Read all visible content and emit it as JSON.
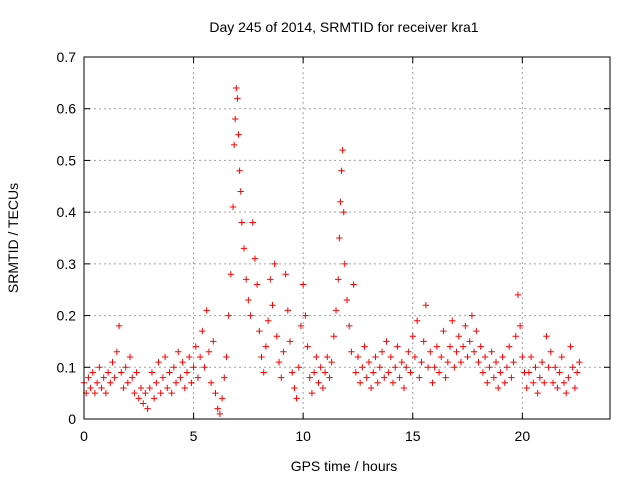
{
  "chart_data": {
    "type": "scatter",
    "title": "Day 245 of 2014, SRMTID for receiver kra1",
    "xlabel": "GPS time / hours",
    "ylabel": "SRMTID / TECUs",
    "xlim": [
      0,
      24
    ],
    "ylim": [
      0,
      0.7
    ],
    "xticks": [
      0,
      5,
      10,
      15,
      20
    ],
    "yticks": [
      0,
      0.1,
      0.2,
      0.3,
      0.4,
      0.5,
      0.6,
      0.7
    ],
    "xtick_labels": [
      "0",
      "5",
      "10",
      "15",
      "20"
    ],
    "ytick_labels": [
      "0",
      "0.1",
      "0.2",
      "0.3",
      "0.4",
      "0.5",
      "0.6",
      "0.7"
    ],
    "grid": true,
    "marker": "+",
    "color": "#ff0000",
    "series": [
      {
        "name": "kra1",
        "points": [
          [
            0.0,
            0.07
          ],
          [
            0.1,
            0.05
          ],
          [
            0.2,
            0.08
          ],
          [
            0.3,
            0.06
          ],
          [
            0.4,
            0.09
          ],
          [
            0.5,
            0.05
          ],
          [
            0.6,
            0.07
          ],
          [
            0.7,
            0.1
          ],
          [
            0.8,
            0.06
          ],
          [
            0.9,
            0.08
          ],
          [
            1.0,
            0.05
          ],
          [
            1.1,
            0.09
          ],
          [
            1.2,
            0.07
          ],
          [
            1.3,
            0.11
          ],
          [
            1.4,
            0.08
          ],
          [
            1.5,
            0.13
          ],
          [
            1.6,
            0.18
          ],
          [
            1.7,
            0.09
          ],
          [
            1.8,
            0.06
          ],
          [
            1.9,
            0.1
          ],
          [
            2.0,
            0.07
          ],
          [
            2.1,
            0.12
          ],
          [
            2.2,
            0.08
          ],
          [
            2.3,
            0.05
          ],
          [
            2.4,
            0.09
          ],
          [
            2.5,
            0.04
          ],
          [
            2.6,
            0.06
          ],
          [
            2.7,
            0.03
          ],
          [
            2.8,
            0.05
          ],
          [
            2.9,
            0.02
          ],
          [
            3.0,
            0.06
          ],
          [
            3.1,
            0.09
          ],
          [
            3.2,
            0.04
          ],
          [
            3.3,
            0.07
          ],
          [
            3.4,
            0.11
          ],
          [
            3.5,
            0.05
          ],
          [
            3.6,
            0.08
          ],
          [
            3.7,
            0.12
          ],
          [
            3.8,
            0.06
          ],
          [
            3.9,
            0.09
          ],
          [
            4.0,
            0.05
          ],
          [
            4.1,
            0.1
          ],
          [
            4.2,
            0.07
          ],
          [
            4.3,
            0.13
          ],
          [
            4.4,
            0.08
          ],
          [
            4.5,
            0.11
          ],
          [
            4.6,
            0.06
          ],
          [
            4.7,
            0.09
          ],
          [
            4.8,
            0.12
          ],
          [
            4.9,
            0.07
          ],
          [
            5.0,
            0.1
          ],
          [
            5.1,
            0.14
          ],
          [
            5.2,
            0.08
          ],
          [
            5.3,
            0.12
          ],
          [
            5.4,
            0.17
          ],
          [
            5.5,
            0.1
          ],
          [
            5.6,
            0.21
          ],
          [
            5.7,
            0.13
          ],
          [
            5.8,
            0.07
          ],
          [
            5.9,
            0.15
          ],
          [
            6.0,
            0.05
          ],
          [
            6.1,
            0.02
          ],
          [
            6.2,
            0.01
          ],
          [
            6.3,
            0.04
          ],
          [
            6.4,
            0.08
          ],
          [
            6.5,
            0.12
          ],
          [
            6.6,
            0.2
          ],
          [
            6.7,
            0.28
          ],
          [
            6.8,
            0.41
          ],
          [
            6.85,
            0.53
          ],
          [
            6.9,
            0.58
          ],
          [
            6.95,
            0.64
          ],
          [
            7.0,
            0.62
          ],
          [
            7.05,
            0.55
          ],
          [
            7.1,
            0.48
          ],
          [
            7.15,
            0.44
          ],
          [
            7.2,
            0.38
          ],
          [
            7.3,
            0.33
          ],
          [
            7.4,
            0.27
          ],
          [
            7.5,
            0.23
          ],
          [
            7.6,
            0.2
          ],
          [
            7.7,
            0.38
          ],
          [
            7.8,
            0.31
          ],
          [
            7.9,
            0.26
          ],
          [
            8.0,
            0.17
          ],
          [
            8.1,
            0.12
          ],
          [
            8.2,
            0.09
          ],
          [
            8.3,
            0.14
          ],
          [
            8.4,
            0.19
          ],
          [
            8.5,
            0.27
          ],
          [
            8.6,
            0.22
          ],
          [
            8.7,
            0.3
          ],
          [
            8.8,
            0.16
          ],
          [
            8.9,
            0.11
          ],
          [
            9.0,
            0.08
          ],
          [
            9.1,
            0.13
          ],
          [
            9.2,
            0.28
          ],
          [
            9.3,
            0.21
          ],
          [
            9.4,
            0.15
          ],
          [
            9.5,
            0.09
          ],
          [
            9.6,
            0.06
          ],
          [
            9.7,
            0.04
          ],
          [
            9.8,
            0.1
          ],
          [
            9.9,
            0.18
          ],
          [
            10.0,
            0.26
          ],
          [
            10.1,
            0.2
          ],
          [
            10.2,
            0.14
          ],
          [
            10.3,
            0.08
          ],
          [
            10.4,
            0.05
          ],
          [
            10.5,
            0.09
          ],
          [
            10.6,
            0.12
          ],
          [
            10.7,
            0.07
          ],
          [
            10.8,
            0.1
          ],
          [
            10.9,
            0.06
          ],
          [
            11.0,
            0.09
          ],
          [
            11.1,
            0.12
          ],
          [
            11.2,
            0.08
          ],
          [
            11.3,
            0.11
          ],
          [
            11.4,
            0.16
          ],
          [
            11.5,
            0.21
          ],
          [
            11.6,
            0.27
          ],
          [
            11.65,
            0.35
          ],
          [
            11.7,
            0.42
          ],
          [
            11.75,
            0.48
          ],
          [
            11.8,
            0.52
          ],
          [
            11.85,
            0.4
          ],
          [
            11.9,
            0.3
          ],
          [
            12.0,
            0.23
          ],
          [
            12.1,
            0.18
          ],
          [
            12.2,
            0.13
          ],
          [
            12.3,
            0.26
          ],
          [
            12.4,
            0.09
          ],
          [
            12.5,
            0.12
          ],
          [
            12.6,
            0.07
          ],
          [
            12.7,
            0.1
          ],
          [
            12.8,
            0.14
          ],
          [
            12.9,
            0.08
          ],
          [
            13.0,
            0.11
          ],
          [
            13.1,
            0.06
          ],
          [
            13.2,
            0.09
          ],
          [
            13.3,
            0.12
          ],
          [
            13.4,
            0.07
          ],
          [
            13.5,
            0.1
          ],
          [
            13.6,
            0.13
          ],
          [
            13.7,
            0.08
          ],
          [
            13.8,
            0.15
          ],
          [
            13.9,
            0.09
          ],
          [
            14.0,
            0.12
          ],
          [
            14.1,
            0.07
          ],
          [
            14.2,
            0.1
          ],
          [
            14.3,
            0.14
          ],
          [
            14.4,
            0.08
          ],
          [
            14.5,
            0.11
          ],
          [
            14.6,
            0.06
          ],
          [
            14.7,
            0.1
          ],
          [
            14.8,
            0.13
          ],
          [
            14.9,
            0.09
          ],
          [
            15.0,
            0.16
          ],
          [
            15.1,
            0.12
          ],
          [
            15.2,
            0.19
          ],
          [
            15.3,
            0.08
          ],
          [
            15.4,
            0.11
          ],
          [
            15.5,
            0.15
          ],
          [
            15.6,
            0.22
          ],
          [
            15.7,
            0.1
          ],
          [
            15.8,
            0.13
          ],
          [
            15.9,
            0.07
          ],
          [
            16.0,
            0.1
          ],
          [
            16.1,
            0.14
          ],
          [
            16.2,
            0.09
          ],
          [
            16.3,
            0.12
          ],
          [
            16.4,
            0.17
          ],
          [
            16.5,
            0.08
          ],
          [
            16.6,
            0.11
          ],
          [
            16.7,
            0.14
          ],
          [
            16.8,
            0.19
          ],
          [
            16.9,
            0.1
          ],
          [
            17.0,
            0.13
          ],
          [
            17.1,
            0.16
          ],
          [
            17.2,
            0.11
          ],
          [
            17.3,
            0.14
          ],
          [
            17.4,
            0.18
          ],
          [
            17.5,
            0.12
          ],
          [
            17.6,
            0.15
          ],
          [
            17.7,
            0.2
          ],
          [
            17.8,
            0.13
          ],
          [
            17.9,
            0.17
          ],
          [
            18.0,
            0.11
          ],
          [
            18.1,
            0.14
          ],
          [
            18.2,
            0.09
          ],
          [
            18.3,
            0.12
          ],
          [
            18.4,
            0.07
          ],
          [
            18.5,
            0.1
          ],
          [
            18.6,
            0.13
          ],
          [
            18.7,
            0.08
          ],
          [
            18.8,
            0.11
          ],
          [
            18.9,
            0.06
          ],
          [
            19.0,
            0.09
          ],
          [
            19.1,
            0.12
          ],
          [
            19.2,
            0.07
          ],
          [
            19.3,
            0.1
          ],
          [
            19.4,
            0.14
          ],
          [
            19.5,
            0.08
          ],
          [
            19.6,
            0.11
          ],
          [
            19.7,
            0.16
          ],
          [
            19.8,
            0.24
          ],
          [
            19.9,
            0.18
          ],
          [
            20.0,
            0.12
          ],
          [
            20.1,
            0.09
          ],
          [
            20.2,
            0.06
          ],
          [
            20.3,
            0.09
          ],
          [
            20.4,
            0.12
          ],
          [
            20.5,
            0.07
          ],
          [
            20.6,
            0.1
          ],
          [
            20.7,
            0.05
          ],
          [
            20.8,
            0.08
          ],
          [
            20.9,
            0.11
          ],
          [
            21.0,
            0.07
          ],
          [
            21.1,
            0.16
          ],
          [
            21.2,
            0.1
          ],
          [
            21.3,
            0.13
          ],
          [
            21.4,
            0.07
          ],
          [
            21.5,
            0.1
          ],
          [
            21.6,
            0.06
          ],
          [
            21.7,
            0.09
          ],
          [
            21.8,
            0.12
          ],
          [
            21.9,
            0.07
          ],
          [
            22.0,
            0.05
          ],
          [
            22.1,
            0.08
          ],
          [
            22.2,
            0.14
          ],
          [
            22.3,
            0.1
          ],
          [
            22.4,
            0.06
          ],
          [
            22.5,
            0.09
          ],
          [
            22.6,
            0.11
          ]
        ]
      }
    ]
  }
}
